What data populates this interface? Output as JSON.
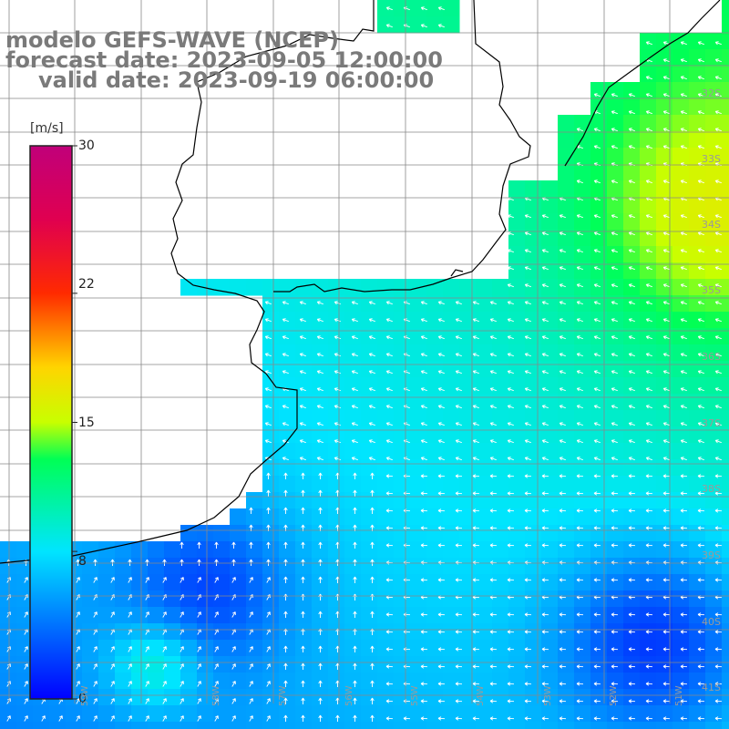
{
  "title": {
    "model": "modelo GEFS-WAVE (NCEP)",
    "forecast": "forecast date: 2023-09-05 12:00:00",
    "valid": "valid date: 2023-09-19 06:00:00"
  },
  "colorbar": {
    "unit": "[m/s]",
    "range": [
      0,
      30
    ],
    "tick_labels": [
      {
        "value": 30,
        "label": "30"
      },
      {
        "value": 22,
        "label": "22"
      },
      {
        "value": 15,
        "label": "15"
      },
      {
        "value": 8,
        "label": "8"
      },
      {
        "value": 0,
        "label": "0"
      }
    ],
    "colors": {
      "v0": "#0000ff",
      "v8": "#00e5ff",
      "v13": "#00ff55",
      "v15": "#c8ff00",
      "v18": "#ffd400",
      "v22": "#ff2a00",
      "v26": "#e00050",
      "v30": "#c0007a"
    }
  },
  "grid": {
    "latitude_labels": [
      "32S",
      "33S",
      "34S",
      "35S",
      "36S",
      "37S",
      "38S",
      "39S",
      "40S",
      "41S"
    ],
    "longitude_labels": [
      "59W",
      "58W",
      "57W",
      "56W",
      "55W",
      "54W",
      "53W",
      "52W",
      "51W"
    ],
    "line_color": "#888888"
  },
  "map": {
    "land_color": "#ffffff",
    "coast_color": "#000000",
    "arrow_color": "#ffffff"
  }
}
